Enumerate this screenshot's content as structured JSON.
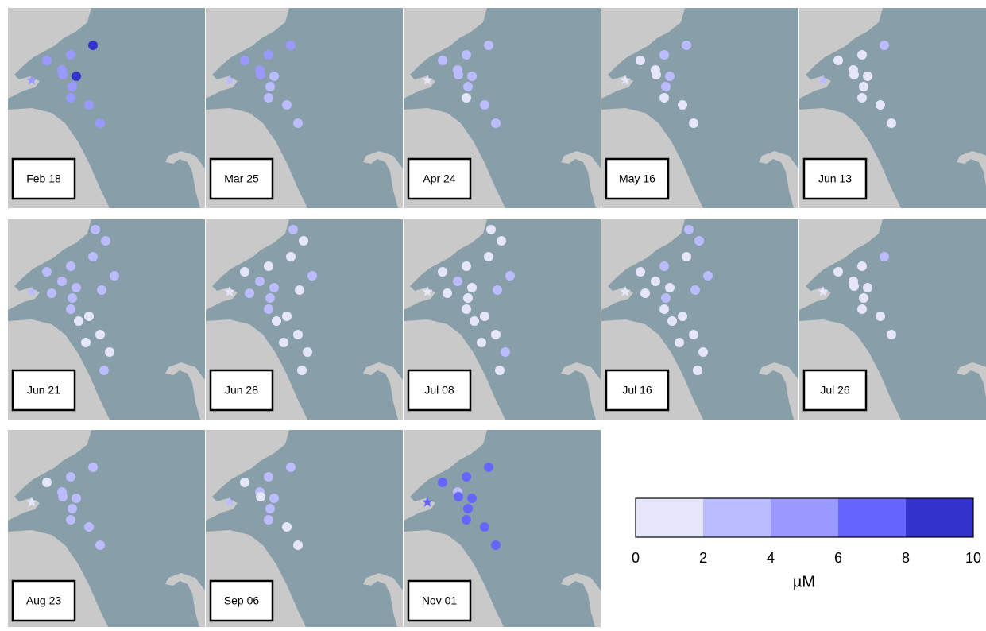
{
  "panels": [
    {
      "label": "Feb 18",
      "values": [
        null,
        null,
        9,
        5,
        5,
        null,
        5,
        5,
        9,
        5,
        null,
        null,
        5,
        5,
        null,
        5,
        null,
        5,
        null,
        null
      ]
    },
    {
      "label": "Mar 25",
      "values": [
        null,
        null,
        5,
        5,
        5,
        null,
        5,
        5,
        3,
        3,
        null,
        null,
        3,
        3,
        null,
        3,
        null,
        3,
        null,
        null
      ]
    },
    {
      "label": "Apr 24",
      "values": [
        null,
        null,
        3,
        3,
        3,
        null,
        3,
        3,
        3,
        1,
        null,
        null,
        3,
        1,
        null,
        3,
        null,
        3,
        null,
        null
      ]
    },
    {
      "label": "May 16",
      "values": [
        null,
        null,
        3,
        3,
        1,
        null,
        1,
        1,
        3,
        1,
        null,
        null,
        3,
        1,
        null,
        1,
        null,
        1,
        null,
        null
      ]
    },
    {
      "label": "Jun 13",
      "values": [
        null,
        null,
        3,
        1,
        1,
        null,
        1,
        1,
        1,
        3,
        null,
        null,
        1,
        1,
        null,
        1,
        null,
        1,
        null,
        null
      ]
    },
    {
      "label": "Jun 21",
      "values": [
        3,
        3,
        3,
        3,
        3,
        3,
        3,
        null,
        3,
        3,
        3,
        3,
        3,
        3,
        1,
        1,
        1,
        1,
        1,
        3
      ]
    },
    {
      "label": "Jun 28",
      "values": [
        3,
        1,
        1,
        1,
        1,
        3,
        3,
        null,
        3,
        1,
        3,
        1,
        3,
        3,
        1,
        1,
        1,
        1,
        1,
        1
      ]
    },
    {
      "label": "Jul 08",
      "values": [
        1,
        1,
        1,
        1,
        1,
        3,
        3,
        null,
        1,
        1,
        1,
        3,
        1,
        1,
        1,
        1,
        1,
        1,
        3,
        1
      ]
    },
    {
      "label": "Jul 16",
      "values": [
        3,
        3,
        1,
        3,
        1,
        3,
        1,
        null,
        1,
        1,
        1,
        3,
        3,
        1,
        1,
        1,
        1,
        1,
        1,
        1
      ]
    },
    {
      "label": "Jul 26",
      "values": [
        null,
        null,
        3,
        1,
        1,
        null,
        1,
        1,
        1,
        1,
        null,
        null,
        1,
        1,
        null,
        1,
        null,
        1,
        null,
        null
      ]
    },
    {
      "label": "Aug 23",
      "values": [
        null,
        null,
        3,
        3,
        1,
        null,
        3,
        3,
        3,
        1,
        null,
        null,
        3,
        3,
        null,
        3,
        null,
        3,
        null,
        null
      ]
    },
    {
      "label": "Sep 06",
      "values": [
        null,
        null,
        3,
        3,
        1,
        null,
        3,
        1,
        3,
        3,
        null,
        null,
        3,
        3,
        null,
        1,
        null,
        1,
        null,
        null
      ]
    },
    {
      "label": "Nov 01",
      "values": [
        null,
        null,
        7,
        7,
        7,
        null,
        3,
        7,
        7,
        7,
        null,
        null,
        7,
        7,
        null,
        7,
        null,
        7,
        null,
        null
      ]
    }
  ],
  "colorbar": {
    "ticks": [
      0,
      2,
      4,
      6,
      8,
      10
    ],
    "colors": [
      "#e6e6fa",
      "#bbbbff",
      "#9999ff",
      "#6666ff",
      "#3333cc"
    ],
    "label": "µM"
  }
}
